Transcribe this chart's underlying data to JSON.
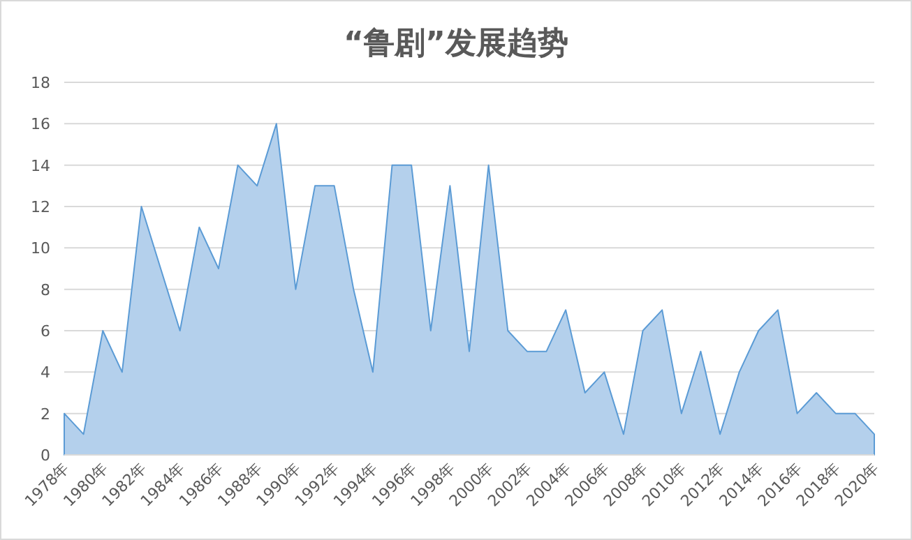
{
  "chart_data": {
    "type": "area",
    "title": "“鲁剧”发展趋势",
    "categories": [
      "1978年",
      null,
      "1980年",
      null,
      "1982年",
      null,
      "1984年",
      null,
      "1986年",
      null,
      "1988年",
      null,
      "1990年",
      null,
      "1992年",
      null,
      "1994年",
      null,
      "1996年",
      null,
      "1998年",
      null,
      "2000年",
      null,
      "2002年",
      null,
      "2004年",
      null,
      "2006年",
      null,
      "2008年",
      null,
      "2010年",
      null,
      "2012年",
      null,
      "2014年",
      null,
      "2016年",
      null,
      "2018年",
      null,
      "2020年"
    ],
    "values": [
      2,
      1,
      6,
      4,
      12,
      9,
      6,
      11,
      9,
      14,
      13,
      16,
      8,
      13,
      13,
      8,
      4,
      14,
      14,
      6,
      13,
      5,
      14,
      6,
      5,
      5,
      7,
      3,
      4,
      1,
      6,
      7,
      2,
      5,
      1,
      4,
      6,
      7,
      2,
      3,
      2,
      2,
      1
    ],
    "color": "#5b9bd5",
    "ylim": [
      0,
      18
    ],
    "yticks": [
      0,
      2,
      4,
      6,
      8,
      10,
      12,
      14,
      16,
      18
    ],
    "grid": "y"
  }
}
